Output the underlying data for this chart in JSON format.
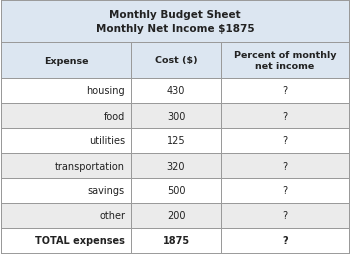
{
  "title_line1": "Monthly Budget Sheet",
  "title_line2": "Monthly Net Income $1875",
  "col_headers": [
    "Expense",
    "Cost ($)",
    "Percent of monthly\nnet income"
  ],
  "rows": [
    [
      "housing",
      "430",
      "?"
    ],
    [
      "food",
      "300",
      "?"
    ],
    [
      "utilities",
      "125",
      "?"
    ],
    [
      "transportation",
      "320",
      "?"
    ],
    [
      "savings",
      "500",
      "?"
    ],
    [
      "other",
      "200",
      "?"
    ],
    [
      "TOTAL expenses",
      "1875",
      "?"
    ]
  ],
  "header_bg": "#dce6f1",
  "col_header_bg": "#dce6f1",
  "row_bg_odd": "#ffffff",
  "row_bg_even": "#ebebeb",
  "total_row_bg": "#ffffff",
  "border_color": "#999999",
  "text_color": "#222222",
  "fig_width": 3.5,
  "fig_height": 2.55,
  "dpi": 100
}
